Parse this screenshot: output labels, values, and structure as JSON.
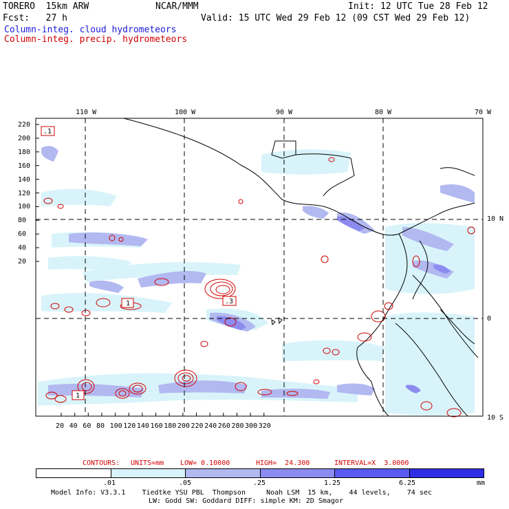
{
  "header": {
    "model": "TORERO  15km ARW",
    "org": "NCAR/MMM",
    "init": "Init: 12 UTC Tue 28 Feb 12",
    "fcst": "Fcst:   27 h",
    "valid": "Valid: 15 UTC Wed 29 Feb 12 (09 CST Wed 29 Feb 12)",
    "field_blue": "Column-integ. cloud hydrometeors",
    "field_red": "Column-integ. precip. hydrometeors"
  },
  "map": {
    "top_lon_labels": [
      "110 W",
      "100 W",
      "90 W",
      "80 W",
      "70 W"
    ],
    "right_lat_labels": [
      "10 N",
      "0",
      "10 S"
    ],
    "left_ticks": [
      "220",
      "200",
      "180",
      "160",
      "140",
      "120",
      "100",
      "80",
      "60",
      "40",
      "20"
    ],
    "bottom_ticks": [
      "20",
      "40",
      "60",
      "80",
      "100",
      "120",
      "140",
      "160",
      "180",
      "200",
      "220",
      "240",
      "260",
      "280",
      "300",
      "320"
    ],
    "contour_labels": [
      ".1",
      "1",
      "1",
      ".3"
    ]
  },
  "contours_line": {
    "title": "CONTOURS:",
    "units": "UNITS=mm",
    "low": "LOW= 0.10000",
    "high": "HIGH=  24.300",
    "interval": "INTERVAL=X  3.0000"
  },
  "colorbar": {
    "labels": [
      ".01",
      ".05",
      ".25",
      "1.25",
      "6.25",
      "mm"
    ],
    "colors": [
      "#ffffff",
      "#d8f4fa",
      "#b2b8f0",
      "#8c8cf0",
      "#5a5af0",
      "#2e2ee6"
    ]
  },
  "footer": {
    "line1": "Model Info: V3.3.1    Tiedtke YSU PBL  Thompson     Noah LSM  15 km,    44 levels,    74 sec",
    "line2": "LW: Godd SW: Goddard DIFF: simple KM: 2D Smagor"
  },
  "colors": {
    "blue_text": "#1a1ad6",
    "red_text": "#d20000",
    "contour": "#d20000"
  }
}
